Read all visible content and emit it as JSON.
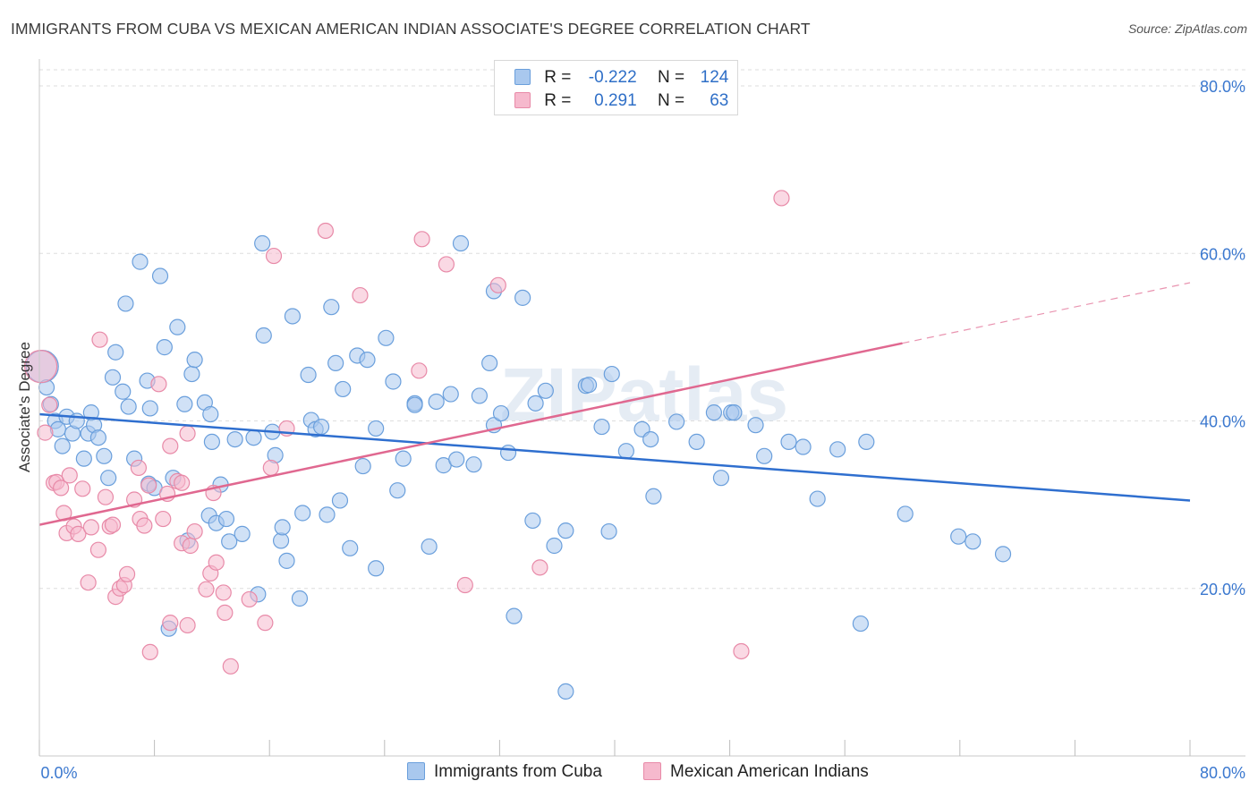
{
  "title": "IMMIGRANTS FROM CUBA VS MEXICAN AMERICAN INDIAN ASSOCIATE'S DEGREE CORRELATION CHART",
  "source": "Source: ZipAtlas.com",
  "watermark": "ZIPatlas",
  "colors": {
    "blue_fill": "#a9c8ee",
    "blue_stroke": "#6a9fdc",
    "blue_line": "#2f6fcf",
    "pink_fill": "#f6b9cd",
    "pink_stroke": "#e88aa8",
    "pink_line": "#e06890",
    "grid": "#dedede",
    "tick_label": "#3b78cf"
  },
  "legend": {
    "rows": [
      {
        "r_label": "R =",
        "r_value": "-0.222",
        "n_label": "N =",
        "n_value": "124"
      },
      {
        "r_label": "R =",
        "r_value": "0.291",
        "n_label": "N =",
        "n_value": "63"
      }
    ]
  },
  "bottom_legend": {
    "series_1": "Immigrants from Cuba",
    "series_2": "Mexican American Indians"
  },
  "chart_data": {
    "type": "scatter",
    "title": "IMMIGRANTS FROM CUBA VS MEXICAN AMERICAN INDIAN ASSOCIATE'S DEGREE CORRELATION CHART",
    "xlabel": "",
    "ylabel": "Associate's Degree",
    "xlim": [
      0,
      80
    ],
    "ylim": [
      0,
      80
    ],
    "x_tick_labels": [
      "0.0%",
      "80.0%"
    ],
    "y_tick_labels": [
      "20.0%",
      "40.0%",
      "60.0%",
      "80.0%"
    ],
    "y_ticks": [
      20,
      40,
      60,
      80
    ],
    "x_minor_ticks": [
      0,
      8,
      16,
      24,
      32,
      40,
      48,
      56,
      64,
      72,
      80
    ],
    "grid": true,
    "series": [
      {
        "name": "Immigrants from Cuba",
        "R": -0.222,
        "N": 124,
        "trend": {
          "x": [
            0,
            80
          ],
          "y": [
            40.8,
            30.5
          ],
          "dashed_from": null
        },
        "points": [
          [
            0.2,
            46.5
          ],
          [
            0.5,
            44
          ],
          [
            0.8,
            42
          ],
          [
            1.1,
            40
          ],
          [
            1.3,
            39
          ],
          [
            1.6,
            37
          ],
          [
            1.9,
            40.5
          ],
          [
            2.3,
            38.5
          ],
          [
            2.6,
            40
          ],
          [
            3.1,
            35.5
          ],
          [
            3.4,
            38.5
          ],
          [
            3.6,
            41
          ],
          [
            3.8,
            39.5
          ],
          [
            4.1,
            38
          ],
          [
            4.5,
            35.8
          ],
          [
            4.8,
            33.2
          ],
          [
            5.1,
            45.2
          ],
          [
            5.3,
            48.2
          ],
          [
            5.8,
            43.5
          ],
          [
            6.2,
            41.7
          ],
          [
            6.0,
            54
          ],
          [
            6.6,
            35.5
          ],
          [
            7.0,
            59
          ],
          [
            7.5,
            44.8
          ],
          [
            7.7,
            41.5
          ],
          [
            7.6,
            32.5
          ],
          [
            8.0,
            32
          ],
          [
            8.4,
            57.3
          ],
          [
            8.7,
            48.8
          ],
          [
            9.0,
            15.2
          ],
          [
            9.3,
            33.2
          ],
          [
            9.6,
            51.2
          ],
          [
            10.1,
            42
          ],
          [
            10.3,
            25.7
          ],
          [
            10.6,
            45.6
          ],
          [
            10.8,
            47.3
          ],
          [
            11.5,
            42.2
          ],
          [
            11.8,
            28.7
          ],
          [
            11.9,
            40.8
          ],
          [
            12.0,
            37.5
          ],
          [
            12.3,
            27.8
          ],
          [
            12.6,
            32.4
          ],
          [
            13.0,
            28.3
          ],
          [
            13.2,
            25.6
          ],
          [
            13.6,
            37.8
          ],
          [
            14.1,
            26.5
          ],
          [
            14.9,
            38
          ],
          [
            15.2,
            19.3
          ],
          [
            15.5,
            61.2
          ],
          [
            15.6,
            50.2
          ],
          [
            16.2,
            38.7
          ],
          [
            16.4,
            35.9
          ],
          [
            16.8,
            25.7
          ],
          [
            16.9,
            27.3
          ],
          [
            17.2,
            23.3
          ],
          [
            17.6,
            52.5
          ],
          [
            18.1,
            18.8
          ],
          [
            18.3,
            29
          ],
          [
            18.7,
            45.5
          ],
          [
            18.9,
            40.1
          ],
          [
            19.2,
            39
          ],
          [
            19.6,
            39.3
          ],
          [
            20.0,
            28.8
          ],
          [
            20.3,
            53.6
          ],
          [
            20.6,
            46.9
          ],
          [
            20.9,
            30.5
          ],
          [
            21.1,
            43.8
          ],
          [
            21.6,
            24.8
          ],
          [
            22.1,
            47.8
          ],
          [
            22.5,
            34.6
          ],
          [
            22.8,
            47.3
          ],
          [
            23.4,
            22.4
          ],
          [
            23.4,
            39.1
          ],
          [
            24.1,
            49.9
          ],
          [
            24.6,
            44.7
          ],
          [
            24.9,
            31.7
          ],
          [
            25.3,
            35.5
          ],
          [
            26.1,
            42.1
          ],
          [
            26.1,
            41.9
          ],
          [
            27.1,
            25
          ],
          [
            27.6,
            42.3
          ],
          [
            28.1,
            34.7
          ],
          [
            28.6,
            43.2
          ],
          [
            29.0,
            35.4
          ],
          [
            29.3,
            61.2
          ],
          [
            30.2,
            34.8
          ],
          [
            30.6,
            43
          ],
          [
            31.3,
            46.9
          ],
          [
            31.6,
            55.5
          ],
          [
            31.6,
            39.5
          ],
          [
            32.1,
            40.9
          ],
          [
            32.6,
            36.2
          ],
          [
            33.0,
            16.7
          ],
          [
            33.6,
            54.7
          ],
          [
            34.3,
            28.1
          ],
          [
            34.5,
            42.1
          ],
          [
            35.2,
            43.6
          ],
          [
            35.8,
            25.1
          ],
          [
            36.6,
            26.9
          ],
          [
            36.6,
            7.7
          ],
          [
            38.0,
            44.2
          ],
          [
            38.2,
            44.3
          ],
          [
            39.1,
            39.3
          ],
          [
            39.6,
            26.8
          ],
          [
            39.8,
            45.6
          ],
          [
            40.8,
            36.4
          ],
          [
            41.9,
            39
          ],
          [
            42.5,
            37.8
          ],
          [
            42.7,
            31
          ],
          [
            44.3,
            39.9
          ],
          [
            45.7,
            37.5
          ],
          [
            46.9,
            41
          ],
          [
            47.4,
            33.2
          ],
          [
            48.1,
            41
          ],
          [
            48.3,
            41
          ],
          [
            49.8,
            39.5
          ],
          [
            50.4,
            35.8
          ],
          [
            52.1,
            37.5
          ],
          [
            53.1,
            36.9
          ],
          [
            54.1,
            30.7
          ],
          [
            55.5,
            36.6
          ],
          [
            57.1,
            15.8
          ],
          [
            57.5,
            37.5
          ],
          [
            60.2,
            28.9
          ],
          [
            63.9,
            26.2
          ],
          [
            64.9,
            25.6
          ],
          [
            67.0,
            24.1
          ]
        ]
      },
      {
        "name": "Mexican American Indians",
        "R": 0.291,
        "N": 63,
        "trend": {
          "x": [
            0,
            80
          ],
          "y": [
            27.6,
            56.5
          ],
          "dashed_from": 60
        },
        "points": [
          [
            0.1,
            46.5
          ],
          [
            0.4,
            38.6
          ],
          [
            0.7,
            41.9
          ],
          [
            1.0,
            32.6
          ],
          [
            1.2,
            32.7
          ],
          [
            1.5,
            32
          ],
          [
            1.7,
            29
          ],
          [
            1.9,
            26.6
          ],
          [
            2.1,
            33.5
          ],
          [
            2.4,
            27.4
          ],
          [
            2.7,
            26.5
          ],
          [
            3.0,
            31.9
          ],
          [
            3.4,
            20.7
          ],
          [
            3.6,
            27.3
          ],
          [
            4.1,
            24.6
          ],
          [
            4.2,
            49.7
          ],
          [
            4.6,
            30.9
          ],
          [
            4.9,
            27.4
          ],
          [
            5.1,
            27.6
          ],
          [
            5.3,
            19
          ],
          [
            5.6,
            20
          ],
          [
            5.9,
            20.4
          ],
          [
            6.1,
            21.7
          ],
          [
            6.6,
            30.6
          ],
          [
            6.9,
            34.4
          ],
          [
            7.0,
            28.3
          ],
          [
            7.3,
            27.5
          ],
          [
            7.6,
            32.3
          ],
          [
            7.7,
            12.4
          ],
          [
            8.3,
            44.4
          ],
          [
            8.6,
            28.3
          ],
          [
            8.9,
            31.3
          ],
          [
            9.1,
            37
          ],
          [
            9.1,
            15.9
          ],
          [
            9.6,
            32.8
          ],
          [
            9.9,
            32.6
          ],
          [
            9.9,
            25.4
          ],
          [
            10.3,
            38.5
          ],
          [
            10.3,
            15.6
          ],
          [
            10.5,
            25.1
          ],
          [
            10.8,
            26.8
          ],
          [
            11.6,
            19.9
          ],
          [
            11.9,
            21.8
          ],
          [
            12.1,
            31.4
          ],
          [
            12.3,
            23.1
          ],
          [
            12.8,
            19.5
          ],
          [
            12.9,
            17.1
          ],
          [
            13.3,
            10.7
          ],
          [
            14.6,
            18.7
          ],
          [
            15.7,
            15.9
          ],
          [
            16.1,
            34.4
          ],
          [
            16.3,
            59.7
          ],
          [
            17.2,
            39.1
          ],
          [
            19.9,
            62.7
          ],
          [
            22.3,
            55
          ],
          [
            26.4,
            46
          ],
          [
            26.6,
            61.7
          ],
          [
            28.3,
            58.7
          ],
          [
            29.6,
            20.4
          ],
          [
            31.9,
            56.2
          ],
          [
            34.8,
            22.5
          ],
          [
            48.8,
            12.5
          ],
          [
            51.6,
            66.6
          ]
        ]
      }
    ]
  }
}
